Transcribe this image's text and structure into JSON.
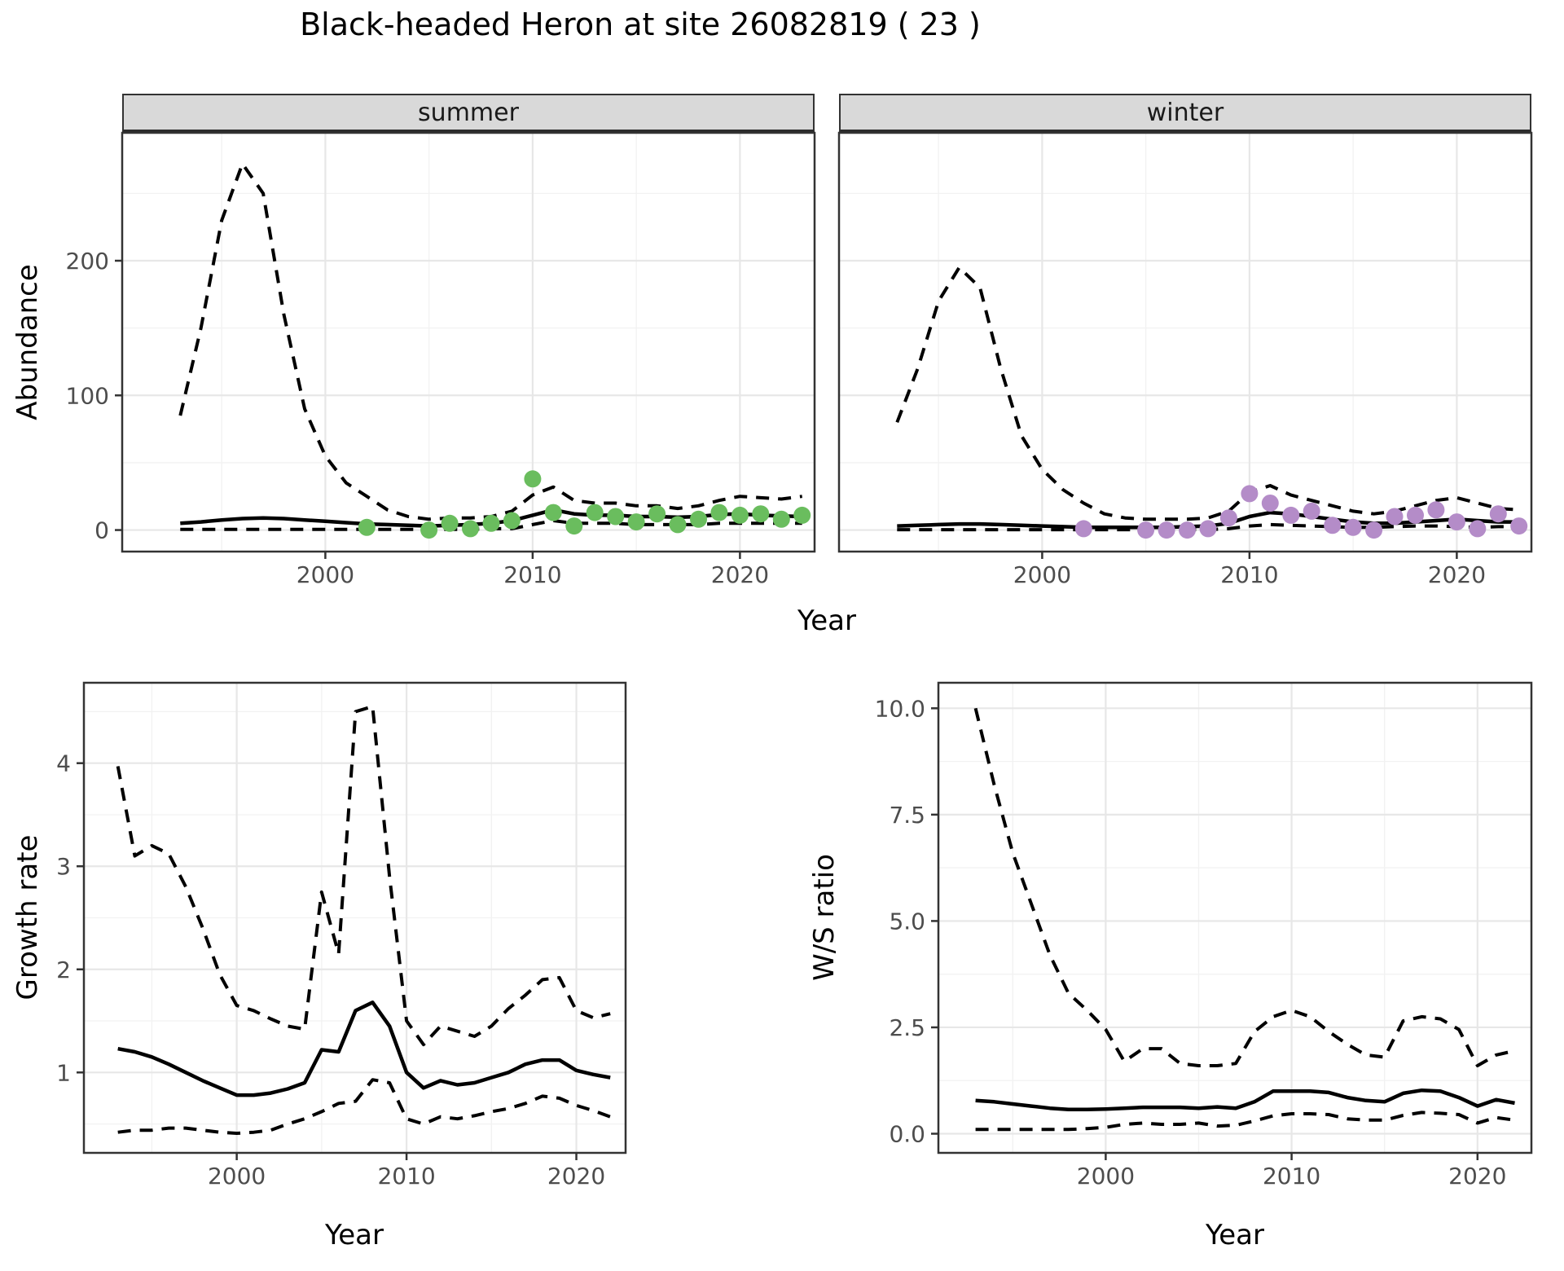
{
  "title": "Black-headed Heron at site 26082819 ( 23 )",
  "labels": {
    "facet_summer": "summer",
    "facet_winter": "winter",
    "y_abundance": "Abundance",
    "y_growth": "Growth rate",
    "y_ws": "W/S ratio",
    "x_year_top": "Year",
    "x_year_bottom_left": "Year",
    "x_year_bottom_right": "Year"
  },
  "colors": {
    "summer_point": "#6abd5e",
    "winter_point": "#b48cc8",
    "line": "#000000",
    "strip_bg": "#d9d9d9",
    "grid_major": "#e7e7e7",
    "grid_minor": "#f2f2f2",
    "panel_border": "#333333",
    "tick_label": "#4d4d4d"
  },
  "chart_data": [
    {
      "id": "abundance_summer",
      "type": "line",
      "facet": "summer",
      "ylabel": "Abundance",
      "xlabel": "Year",
      "x_domain": [
        1990.2,
        2023.6
      ],
      "y_domain": [
        -16,
        295
      ],
      "x_ticks": {
        "major": [
          2000,
          2010,
          2020
        ],
        "minor": [
          1995,
          2005,
          2015
        ]
      },
      "y_ticks": {
        "major": [
          0,
          100,
          200
        ],
        "minor": [
          50,
          150,
          250
        ],
        "labels": [
          "0",
          "100",
          "200"
        ]
      },
      "years": [
        1993,
        1994,
        1995,
        1996,
        1997,
        1998,
        1999,
        2000,
        2001,
        2002,
        2003,
        2004,
        2005,
        2006,
        2007,
        2008,
        2009,
        2010,
        2011,
        2012,
        2013,
        2014,
        2015,
        2016,
        2017,
        2018,
        2019,
        2020,
        2021,
        2022,
        2023
      ],
      "series": [
        {
          "name": "median",
          "style": "solid",
          "values": [
            5,
            6,
            7.5,
            8.5,
            9,
            8.5,
            7.5,
            6.5,
            5.5,
            4.5,
            4,
            3.5,
            3,
            3.5,
            4,
            5,
            7,
            11,
            15,
            12,
            11,
            11,
            10,
            10,
            9.5,
            10,
            11.5,
            12,
            11,
            10.5,
            10
          ]
        },
        {
          "name": "upper_ci",
          "style": "dashed",
          "values": [
            85,
            150,
            230,
            272,
            250,
            160,
            90,
            55,
            35,
            25,
            15,
            10,
            8,
            9,
            9,
            10,
            14,
            26,
            32,
            22,
            20,
            20,
            18,
            18,
            16,
            18,
            22,
            25,
            24,
            23,
            25
          ]
        },
        {
          "name": "lower_ci",
          "style": "dashed",
          "values": [
            0.5,
            0.5,
            0.5,
            0.5,
            0.5,
            0.5,
            0.5,
            0.5,
            0.5,
            0.5,
            0.5,
            0.5,
            0.5,
            0.5,
            0.5,
            1,
            1,
            4,
            7,
            5,
            5,
            5,
            4,
            4,
            4,
            4,
            5,
            5,
            5,
            5,
            5
          ]
        }
      ],
      "points": {
        "name": "observed_counts",
        "color": "#6abd5e",
        "years": [
          2002,
          2005,
          2006,
          2007,
          2008,
          2009,
          2010,
          2011,
          2012,
          2013,
          2014,
          2015,
          2016,
          2017,
          2018,
          2019,
          2020,
          2021,
          2022,
          2023
        ],
        "values": [
          2,
          0,
          5,
          1,
          5,
          7,
          38,
          13,
          3,
          13,
          10,
          6,
          12,
          4,
          8,
          13,
          11,
          12,
          8,
          11
        ]
      }
    },
    {
      "id": "abundance_winter",
      "type": "line",
      "facet": "winter",
      "ylabel": "Abundance",
      "xlabel": "Year",
      "x_domain": [
        1990.2,
        2023.6
      ],
      "y_domain": [
        -16,
        295
      ],
      "x_ticks": {
        "major": [
          2000,
          2010,
          2020
        ],
        "minor": [
          1995,
          2005,
          2015
        ]
      },
      "y_ticks": {
        "major": [
          0,
          100,
          200
        ],
        "minor": [
          50,
          150,
          250
        ],
        "labels": [
          "0",
          "100",
          "200"
        ],
        "hide_labels": true
      },
      "years": [
        1993,
        1994,
        1995,
        1996,
        1997,
        1998,
        1999,
        2000,
        2001,
        2002,
        2003,
        2004,
        2005,
        2006,
        2007,
        2008,
        2009,
        2010,
        2011,
        2012,
        2013,
        2014,
        2015,
        2016,
        2017,
        2018,
        2019,
        2020,
        2021,
        2022,
        2023
      ],
      "series": [
        {
          "name": "median",
          "style": "solid",
          "values": [
            3,
            3.5,
            4,
            4.5,
            4.5,
            4,
            3.5,
            3,
            2.5,
            2,
            2,
            2,
            2,
            2,
            2.5,
            3,
            5,
            10,
            13,
            12,
            10,
            8,
            6,
            5,
            5,
            6,
            7,
            8,
            7,
            6,
            6
          ]
        },
        {
          "name": "upper_ci",
          "style": "dashed",
          "values": [
            80,
            120,
            170,
            195,
            180,
            120,
            70,
            45,
            30,
            20,
            12,
            9,
            8,
            8,
            8,
            9,
            14,
            28,
            33,
            26,
            22,
            18,
            14,
            12,
            14,
            18,
            22,
            24,
            20,
            16,
            15
          ]
        },
        {
          "name": "lower_ci",
          "style": "dashed",
          "values": [
            0.3,
            0.3,
            0.3,
            0.3,
            0.3,
            0.3,
            0.3,
            0.3,
            0.3,
            0.3,
            0.3,
            0.3,
            0.3,
            0.3,
            0.3,
            0.3,
            1,
            3,
            4,
            3.5,
            3,
            2.5,
            2,
            2,
            2.5,
            3,
            3,
            2.5,
            2,
            2.5,
            2.5
          ]
        }
      ],
      "points": {
        "name": "observed_counts",
        "color": "#b48cc8",
        "years": [
          2002,
          2005,
          2006,
          2007,
          2008,
          2009,
          2010,
          2011,
          2012,
          2013,
          2014,
          2015,
          2016,
          2017,
          2018,
          2019,
          2020,
          2021,
          2022,
          2023
        ],
        "values": [
          1,
          0,
          0,
          0,
          1,
          9,
          27,
          20,
          11,
          14,
          3.5,
          2,
          0,
          10,
          11,
          15,
          6,
          1,
          12,
          3
        ]
      }
    },
    {
      "id": "growth_rate",
      "type": "line",
      "ylabel": "Growth rate",
      "xlabel": "Year",
      "x_domain": [
        1991,
        2022.9
      ],
      "y_domain": [
        0.22,
        4.78
      ],
      "x_ticks": {
        "major": [
          2000,
          2010,
          2020
        ],
        "minor": [
          1995,
          2005,
          2015
        ]
      },
      "y_ticks": {
        "major": [
          1,
          2,
          3,
          4
        ],
        "minor": [
          0.5,
          1.5,
          2.5,
          3.5,
          4.5
        ],
        "labels": [
          "1",
          "2",
          "3",
          "4"
        ]
      },
      "years": [
        1993,
        1994,
        1995,
        1996,
        1997,
        1998,
        1999,
        2000,
        2001,
        2002,
        2003,
        2004,
        2005,
        2006,
        2007,
        2008,
        2009,
        2010,
        2011,
        2012,
        2013,
        2014,
        2015,
        2016,
        2017,
        2018,
        2019,
        2020,
        2021,
        2022
      ],
      "series": [
        {
          "name": "median",
          "style": "solid",
          "values": [
            1.23,
            1.2,
            1.15,
            1.08,
            1.0,
            0.92,
            0.85,
            0.78,
            0.78,
            0.8,
            0.84,
            0.9,
            1.22,
            1.2,
            1.6,
            1.68,
            1.45,
            1.0,
            0.85,
            0.92,
            0.88,
            0.9,
            0.95,
            1.0,
            1.08,
            1.12,
            1.12,
            1.02,
            0.98,
            0.95
          ]
        },
        {
          "name": "upper_ci",
          "style": "dashed",
          "values": [
            3.97,
            3.1,
            3.2,
            3.12,
            2.8,
            2.4,
            1.95,
            1.65,
            1.6,
            1.52,
            1.45,
            1.42,
            2.75,
            2.15,
            4.5,
            4.55,
            2.9,
            1.5,
            1.27,
            1.45,
            1.4,
            1.35,
            1.45,
            1.62,
            1.75,
            1.9,
            1.92,
            1.6,
            1.53,
            1.57
          ]
        },
        {
          "name": "lower_ci",
          "style": "dashed",
          "values": [
            0.42,
            0.44,
            0.44,
            0.46,
            0.46,
            0.44,
            0.42,
            0.41,
            0.42,
            0.44,
            0.5,
            0.55,
            0.62,
            0.7,
            0.72,
            0.93,
            0.9,
            0.55,
            0.5,
            0.57,
            0.55,
            0.58,
            0.62,
            0.65,
            0.7,
            0.77,
            0.75,
            0.68,
            0.63,
            0.57
          ]
        }
      ]
    },
    {
      "id": "ws_ratio",
      "type": "line",
      "ylabel": "W/S ratio",
      "xlabel": "Year",
      "x_domain": [
        1991,
        2022.9
      ],
      "y_domain": [
        -0.45,
        10.6
      ],
      "x_ticks": {
        "major": [
          2000,
          2010,
          2020
        ],
        "minor": [
          1995,
          2005,
          2015
        ]
      },
      "y_ticks": {
        "major": [
          0,
          2.5,
          5,
          7.5,
          10
        ],
        "minor": [
          1.25,
          3.75,
          6.25,
          8.75
        ],
        "labels": [
          "0.0",
          "2.5",
          "5.0",
          "7.5",
          "10.0"
        ]
      },
      "years": [
        1993,
        1994,
        1995,
        1996,
        1997,
        1998,
        1999,
        2000,
        2001,
        2002,
        2003,
        2004,
        2005,
        2006,
        2007,
        2008,
        2009,
        2010,
        2011,
        2012,
        2013,
        2014,
        2015,
        2016,
        2017,
        2018,
        2019,
        2020,
        2021,
        2022
      ],
      "series": [
        {
          "name": "median",
          "style": "solid",
          "values": [
            0.78,
            0.75,
            0.7,
            0.65,
            0.6,
            0.57,
            0.57,
            0.58,
            0.6,
            0.62,
            0.62,
            0.62,
            0.6,
            0.63,
            0.6,
            0.75,
            1.0,
            1.0,
            1.0,
            0.97,
            0.85,
            0.78,
            0.75,
            0.95,
            1.02,
            1.0,
            0.85,
            0.65,
            0.8,
            0.72
          ]
        },
        {
          "name": "upper_ci",
          "style": "dashed",
          "values": [
            10.0,
            8.2,
            6.6,
            5.4,
            4.2,
            3.3,
            2.9,
            2.45,
            1.7,
            2.0,
            2.0,
            1.65,
            1.6,
            1.6,
            1.65,
            2.4,
            2.75,
            2.9,
            2.75,
            2.4,
            2.1,
            1.85,
            1.8,
            2.65,
            2.75,
            2.7,
            2.45,
            1.6,
            1.85,
            1.95
          ]
        },
        {
          "name": "lower_ci",
          "style": "dashed",
          "values": [
            0.1,
            0.1,
            0.1,
            0.1,
            0.1,
            0.1,
            0.12,
            0.15,
            0.22,
            0.25,
            0.22,
            0.22,
            0.25,
            0.18,
            0.2,
            0.3,
            0.42,
            0.47,
            0.47,
            0.45,
            0.35,
            0.32,
            0.32,
            0.43,
            0.5,
            0.48,
            0.45,
            0.25,
            0.38,
            0.32
          ]
        }
      ]
    }
  ]
}
